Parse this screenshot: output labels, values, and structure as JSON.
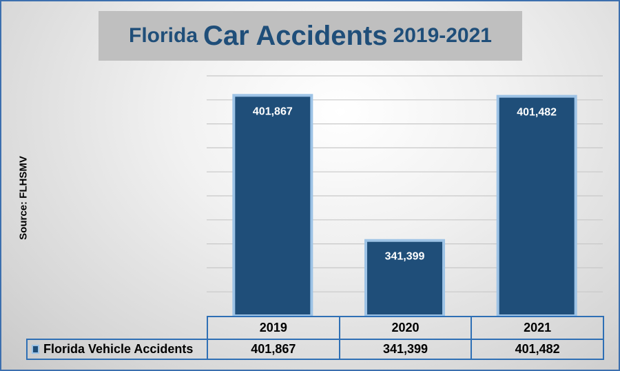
{
  "chart_data": {
    "type": "bar",
    "title_parts": [
      "Florida",
      "Car Accidents",
      "2019-2021"
    ],
    "ylabel": "Source: FLHSMV",
    "categories": [
      "2019",
      "2020",
      "2021"
    ],
    "series": [
      {
        "name": "Florida Vehicle Accidents",
        "values": [
          401867,
          341399,
          401482
        ],
        "labels": [
          "401,867",
          "341,399",
          "401,482"
        ]
      }
    ],
    "ylim": [
      310000,
      410000
    ],
    "gridline_step": 10000,
    "grid": true,
    "legend": "data-table-left",
    "colors": {
      "bar": "#1f4e79",
      "bar_edge": "#9dc3e6",
      "title": "#1f4e79",
      "table_border": "#2e6fb5"
    }
  }
}
